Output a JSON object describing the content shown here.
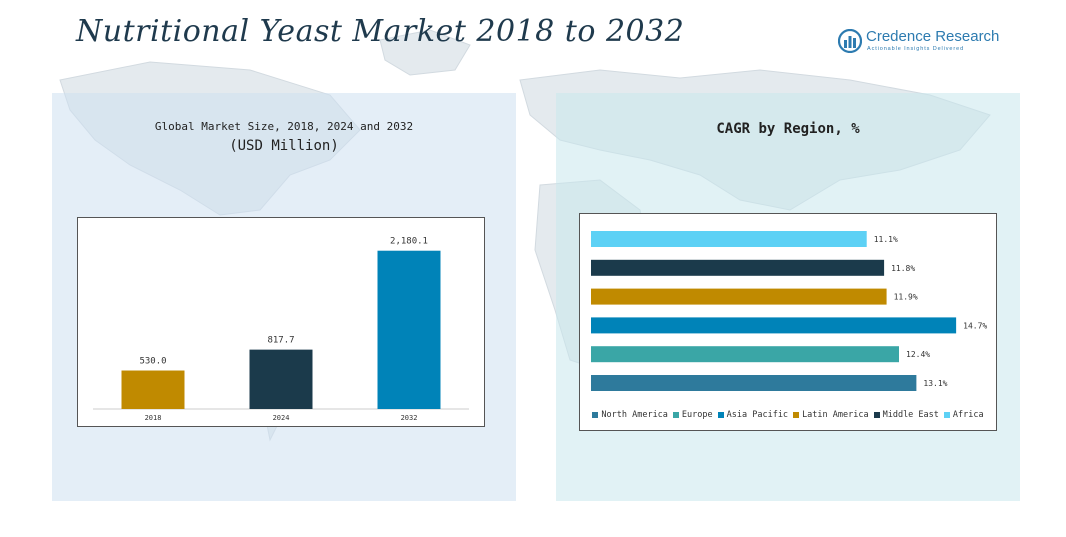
{
  "header": {
    "title": "Nutritional Yeast Market 2018 to 2032"
  },
  "logo": {
    "name": "Credence Research",
    "tagline": "Actionable Insights Delivered",
    "icon": "credence-logo-icon",
    "color": "#2d7bb0"
  },
  "left_panel": {
    "title_line1": "Global Market Size, 2018, 2024 and 2032",
    "title_line2": "(USD Million)"
  },
  "right_panel": {
    "title": "CAGR by Region, %"
  },
  "chart_data": [
    {
      "type": "bar",
      "categories": [
        "2018",
        "2024",
        "2032"
      ],
      "values": [
        530.0,
        817.7,
        2180.1
      ],
      "value_labels": [
        "530.0",
        "817.7",
        "2,180.1"
      ],
      "colors": [
        "#c08a00",
        "#1b3a4b",
        "#0083b8"
      ],
      "title": "Global Market Size, 2018, 2024 and 2032",
      "subtitle": "(USD Million)",
      "xlabel": "",
      "ylabel": "",
      "ylim": [
        0,
        2300
      ],
      "grid": false
    },
    {
      "type": "bar",
      "orientation": "horizontal",
      "title": "CAGR by Region, %",
      "categories": [
        "Africa",
        "Middle East",
        "Latin America",
        "Asia Pacific",
        "Europe",
        "North America"
      ],
      "values": [
        11.1,
        11.8,
        11.9,
        14.7,
        12.4,
        13.1
      ],
      "value_labels": [
        "11.1%",
        "11.8%",
        "11.9%",
        "14.7%",
        "12.4%",
        "13.1%"
      ],
      "colors": [
        "#5dd1f5",
        "#1b3a4b",
        "#c08a00",
        "#0083b8",
        "#3aa6a6",
        "#2e7a9c"
      ],
      "xlim": [
        0,
        15.5
      ],
      "grid": false,
      "legend": {
        "placement": "bottom",
        "entries": [
          {
            "name": "North America",
            "color": "#2e7a9c"
          },
          {
            "name": "Europe",
            "color": "#3aa6a6"
          },
          {
            "name": "Asia Pacific",
            "color": "#0083b8"
          },
          {
            "name": "Latin America",
            "color": "#c08a00"
          },
          {
            "name": "Middle East",
            "color": "#1b3a4b"
          },
          {
            "name": "Africa",
            "color": "#5dd1f5"
          }
        ]
      }
    }
  ]
}
